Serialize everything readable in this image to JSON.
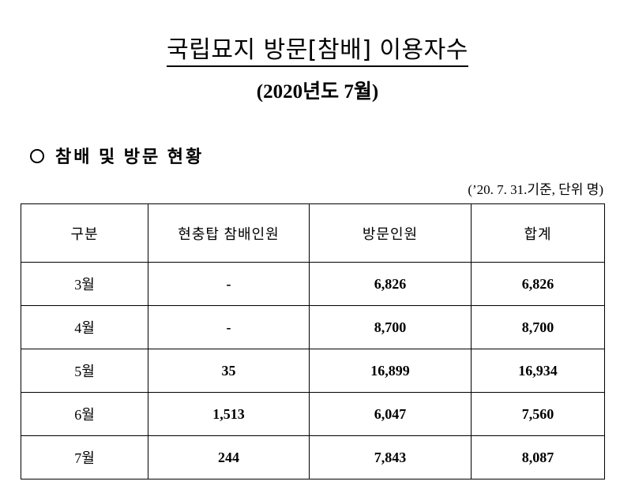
{
  "document": {
    "title": "국립묘지 방문[참배] 이용자수",
    "subtitle": "(2020년도 7월)",
    "section_heading": "참배 및 방문 현황",
    "note": "(’20. 7. 31.기준, 단위 명)"
  },
  "table": {
    "headers": [
      "구분",
      "현충탑 참배인원",
      "방문인원",
      "합계"
    ],
    "rows": [
      [
        "3월",
        "-",
        "6,826",
        "6,826"
      ],
      [
        "4월",
        "-",
        "8,700",
        "8,700"
      ],
      [
        "5월",
        "35",
        "16,899",
        "16,934"
      ],
      [
        "6월",
        "1,513",
        "6,047",
        "7,560"
      ],
      [
        "7월",
        "244",
        "7,843",
        "8,087"
      ]
    ]
  }
}
